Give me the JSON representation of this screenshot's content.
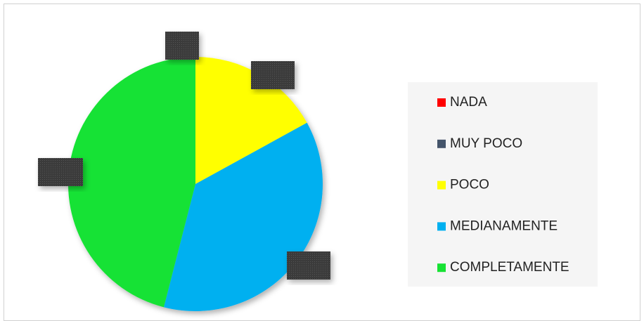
{
  "chart_data": {
    "type": "pie",
    "categories": [
      "NADA",
      "MUY POCO",
      "POCO",
      "MEDIANAMENTE",
      "COMPLETAMENTE"
    ],
    "values": [
      0,
      0,
      17,
      37,
      46
    ],
    "colors": [
      "#ff0000",
      "#44546a",
      "#ffff00",
      "#00b0f0",
      "#17e234"
    ],
    "legend": "right"
  }
}
